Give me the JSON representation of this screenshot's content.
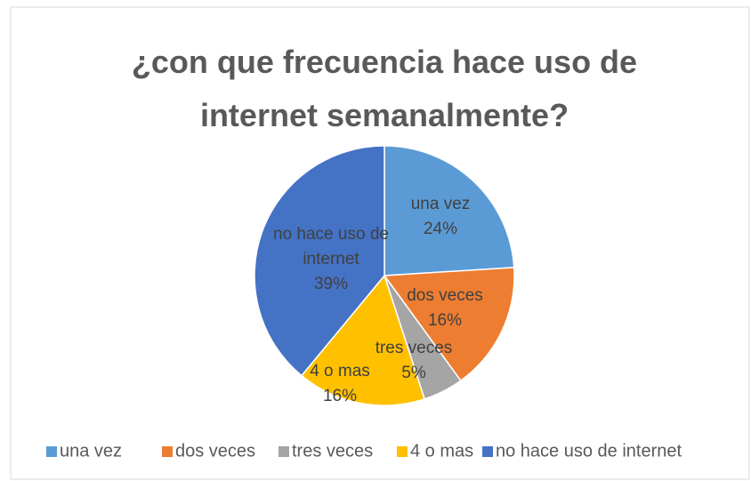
{
  "chart_data": {
    "type": "pie",
    "title": "¿con que frecuencia hace uso de internet semanalmente?",
    "categories": [
      "una vez",
      "dos veces",
      "tres veces",
      "4 o mas",
      "no hace uso de internet"
    ],
    "values": [
      24,
      16,
      5,
      16,
      39
    ],
    "value_labels": [
      "24%",
      "16%",
      "5%",
      "16%",
      "39%"
    ],
    "colors": [
      "#5b9bd5",
      "#ed7d31",
      "#a5a5a5",
      "#ffc000",
      "#4472c4"
    ],
    "legend": "bottom"
  }
}
